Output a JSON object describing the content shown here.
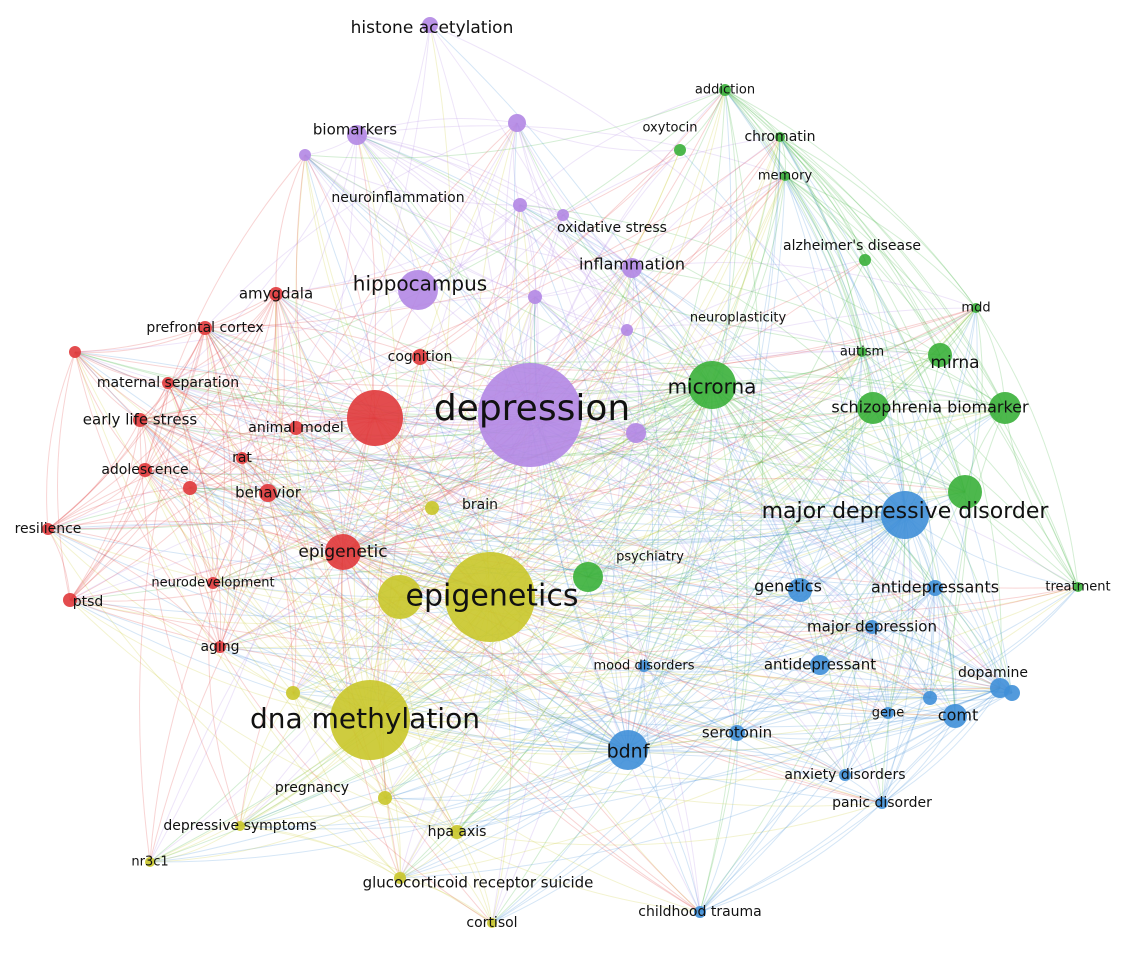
{
  "clusters": [
    {
      "color": "#e0393b"
    },
    {
      "color": "#3ab03a"
    },
    {
      "color": "#3f8fd8"
    },
    {
      "color": "#c9c72a"
    },
    {
      "color": "#b387e4"
    }
  ],
  "nodes": [
    {
      "label": "histone acetylation",
      "cluster": 4
    },
    {
      "label": "biomarkers",
      "cluster": 4
    },
    {
      "label": "neuroinflammation",
      "cluster": 4
    },
    {
      "label": "hippocampus",
      "cluster": 4
    },
    {
      "label": "depression",
      "cluster": 4
    },
    {
      "label": "inflammation",
      "cluster": 4
    },
    {
      "label": "oxidative stress",
      "cluster": 4
    },
    {
      "label": "neuroplasticity",
      "cluster": 4
    },
    {
      "label": "addiction",
      "cluster": 1
    },
    {
      "label": "oxytocin",
      "cluster": 1
    },
    {
      "label": "chromatin",
      "cluster": 1
    },
    {
      "label": "memory",
      "cluster": 1
    },
    {
      "label": "alzheimer's disease",
      "cluster": 1
    },
    {
      "label": "mdd",
      "cluster": 1
    },
    {
      "label": "autism",
      "cluster": 1
    },
    {
      "label": "mirna",
      "cluster": 1
    },
    {
      "label": "microrna",
      "cluster": 1
    },
    {
      "label": "schizophrenia biomarker",
      "cluster": 1
    },
    {
      "label": "psychiatry",
      "cluster": 1
    },
    {
      "label": "treatment",
      "cluster": 1
    },
    {
      "label": "major depressive disorder",
      "cluster": 2
    },
    {
      "label": "genetics",
      "cluster": 2
    },
    {
      "label": "antidepressants",
      "cluster": 2
    },
    {
      "label": "major depression",
      "cluster": 2
    },
    {
      "label": "antidepressant",
      "cluster": 2
    },
    {
      "label": "dopamine",
      "cluster": 2
    },
    {
      "label": "comt",
      "cluster": 2
    },
    {
      "label": "gene",
      "cluster": 2
    },
    {
      "label": "serotonin",
      "cluster": 2
    },
    {
      "label": "bdnf",
      "cluster": 2
    },
    {
      "label": "anxiety disorders",
      "cluster": 2
    },
    {
      "label": "panic disorder",
      "cluster": 2
    },
    {
      "label": "childhood trauma",
      "cluster": 2
    },
    {
      "label": "mood disorders",
      "cluster": 2
    },
    {
      "label": "epigenetics",
      "cluster": 3
    },
    {
      "label": "dna methylation",
      "cluster": 3
    },
    {
      "label": "brain",
      "cluster": 3
    },
    {
      "label": "pregnancy",
      "cluster": 3
    },
    {
      "label": "depressive symptoms",
      "cluster": 3
    },
    {
      "label": "nr3c1",
      "cluster": 3
    },
    {
      "label": "hpa axis",
      "cluster": 3
    },
    {
      "label": "glucocorticoid receptor suicide",
      "cluster": 3
    },
    {
      "label": "cortisol",
      "cluster": 3
    },
    {
      "label": "amygdala",
      "cluster": 0
    },
    {
      "label": "prefrontal cortex",
      "cluster": 0
    },
    {
      "label": "cognition",
      "cluster": 0
    },
    {
      "label": "maternal separation",
      "cluster": 0
    },
    {
      "label": "early life stress",
      "cluster": 0
    },
    {
      "label": "animal model",
      "cluster": 0
    },
    {
      "label": "rat",
      "cluster": 0
    },
    {
      "label": "adolescence",
      "cluster": 0
    },
    {
      "label": "behavior",
      "cluster": 0
    },
    {
      "label": "resilience",
      "cluster": 0
    },
    {
      "label": "epigenetic",
      "cluster": 0
    },
    {
      "label": "neurodevelopment",
      "cluster": 0
    },
    {
      "label": "ptsd",
      "cluster": 0
    },
    {
      "label": "aging",
      "cluster": 0
    }
  ]
}
